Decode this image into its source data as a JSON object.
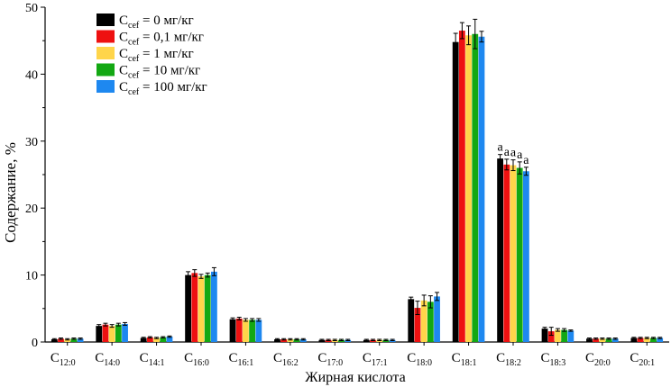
{
  "chart_data": {
    "type": "bar",
    "title": "",
    "xlabel": "Жирная кислота",
    "ylabel": "Содержание, %",
    "ylim": [
      0,
      50
    ],
    "yticks": [
      0,
      10,
      20,
      30,
      40,
      50
    ],
    "categories": [
      {
        "base": "C",
        "sub": "12:0"
      },
      {
        "base": "C",
        "sub": "14:0"
      },
      {
        "base": "C",
        "sub": "14:1"
      },
      {
        "base": "C",
        "sub": "16:0"
      },
      {
        "base": "C",
        "sub": "16:1"
      },
      {
        "base": "C",
        "sub": "16:2"
      },
      {
        "base": "C",
        "sub": "17:0"
      },
      {
        "base": "C",
        "sub": "17:1"
      },
      {
        "base": "C",
        "sub": "18:0"
      },
      {
        "base": "C",
        "sub": "18:1"
      },
      {
        "base": "C",
        "sub": "18:2"
      },
      {
        "base": "C",
        "sub": "18:3"
      },
      {
        "base": "C",
        "sub": "20:0"
      },
      {
        "base": "C",
        "sub": "20:1"
      }
    ],
    "series": [
      {
        "name": "0 мг/кг",
        "legend": {
          "base": "C",
          "sub": "cef",
          "rest": " = 0 мг/кг"
        },
        "color": "#000000",
        "values": [
          0.4,
          2.4,
          0.6,
          10.0,
          3.4,
          0.4,
          0.3,
          0.3,
          6.4,
          44.8,
          27.4,
          2.0,
          0.5,
          0.6
        ],
        "errors": [
          0.1,
          0.2,
          0.1,
          0.5,
          0.2,
          0.1,
          0.1,
          0.1,
          0.3,
          1.3,
          0.6,
          0.2,
          0.1,
          0.1
        ]
      },
      {
        "name": "0,1 мг/кг",
        "legend": {
          "base": "C",
          "sub": "cef",
          "rest": " = 0,1 мг/кг"
        },
        "color": "#ee1111",
        "values": [
          0.5,
          2.6,
          0.7,
          10.3,
          3.5,
          0.4,
          0.3,
          0.3,
          5.1,
          46.5,
          26.5,
          1.6,
          0.5,
          0.6
        ],
        "errors": [
          0.1,
          0.2,
          0.1,
          0.5,
          0.2,
          0.1,
          0.1,
          0.1,
          1.0,
          1.2,
          0.8,
          0.6,
          0.1,
          0.1
        ]
      },
      {
        "name": "1 мг/кг",
        "legend": {
          "base": "C",
          "sub": "cef",
          "rest": " = 1 мг/кг"
        },
        "color": "#ffd54a",
        "values": [
          0.4,
          2.4,
          0.6,
          9.8,
          3.3,
          0.4,
          0.3,
          0.3,
          6.2,
          45.8,
          26.4,
          1.8,
          0.5,
          0.6
        ],
        "errors": [
          0.1,
          0.2,
          0.1,
          0.3,
          0.2,
          0.1,
          0.1,
          0.1,
          0.8,
          1.4,
          0.8,
          0.2,
          0.1,
          0.1
        ]
      },
      {
        "name": "10 мг/кг",
        "legend": {
          "base": "C",
          "sub": "cef",
          "rest": " = 10 мг/кг"
        },
        "color": "#13a813",
        "values": [
          0.5,
          2.6,
          0.7,
          10.0,
          3.3,
          0.4,
          0.3,
          0.3,
          6.0,
          46.0,
          26.0,
          1.8,
          0.5,
          0.6
        ],
        "errors": [
          0.1,
          0.2,
          0.1,
          0.3,
          0.2,
          0.1,
          0.1,
          0.1,
          0.9,
          2.2,
          0.9,
          0.2,
          0.1,
          0.1
        ]
      },
      {
        "name": "100 мг/кг",
        "legend": {
          "base": "C",
          "sub": "cef",
          "rest": " = 100 мг/кг"
        },
        "color": "#1e88f0",
        "values": [
          0.5,
          2.7,
          0.8,
          10.5,
          3.3,
          0.4,
          0.3,
          0.3,
          6.8,
          45.6,
          25.5,
          1.7,
          0.5,
          0.6
        ],
        "errors": [
          0.1,
          0.2,
          0.1,
          0.6,
          0.2,
          0.1,
          0.1,
          0.1,
          0.6,
          0.8,
          0.6,
          0.1,
          0.1,
          0.1
        ]
      }
    ],
    "annotations": {
      "category": "18:2",
      "label": "a"
    },
    "legend_position": "top-left",
    "grid": false
  }
}
